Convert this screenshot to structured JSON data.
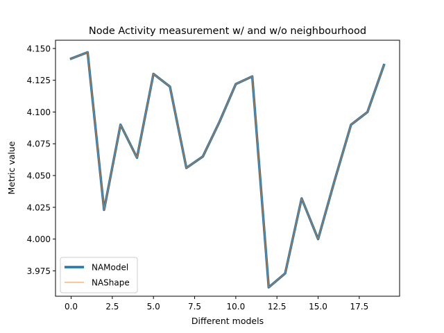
{
  "chart_data": {
    "type": "line",
    "title": "Node Activity measurement w/ and w/o neighbourhood",
    "xlabel": "Different models",
    "ylabel": "Metric value",
    "xlim": [
      -0.95,
      19.95
    ],
    "ylim": [
      3.955,
      4.1565
    ],
    "x_ticks": [
      0.0,
      2.5,
      5.0,
      7.5,
      10.0,
      12.5,
      15.0,
      17.5
    ],
    "x_tick_labels": [
      "0.0",
      "2.5",
      "5.0",
      "7.5",
      "10.0",
      "12.5",
      "15.0",
      "17.5"
    ],
    "y_ticks": [
      3.975,
      4.0,
      4.025,
      4.05,
      4.075,
      4.1,
      4.125,
      4.15
    ],
    "y_tick_labels": [
      "3.975",
      "4.000",
      "4.025",
      "4.050",
      "4.075",
      "4.100",
      "4.125",
      "4.150"
    ],
    "grid": false,
    "legend_position": "lower-left",
    "x": [
      0,
      1,
      2,
      3,
      4,
      5,
      6,
      7,
      8,
      9,
      10,
      11,
      12,
      13,
      14,
      15,
      16,
      17,
      18,
      19
    ],
    "series": [
      {
        "name": "NAModel",
        "color": "#1f77b4",
        "values": [
          4.142,
          4.147,
          4.023,
          4.09,
          4.064,
          4.13,
          4.12,
          4.056,
          4.065,
          4.092,
          4.122,
          4.128,
          3.962,
          3.973,
          4.032,
          4.0,
          4.046,
          4.09,
          4.1,
          4.137
        ]
      },
      {
        "name": "NAShape",
        "color": "#ff7f0e",
        "values": [
          4.142,
          4.147,
          4.023,
          4.09,
          4.064,
          4.13,
          4.12,
          4.056,
          4.065,
          4.092,
          4.122,
          4.128,
          3.962,
          3.973,
          4.032,
          4.0,
          4.046,
          4.09,
          4.1,
          4.137
        ]
      }
    ]
  }
}
